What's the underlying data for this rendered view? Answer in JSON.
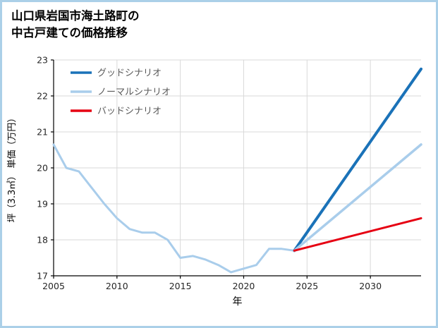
{
  "header": {
    "title_lines": [
      "山口県岩国市海土路町の",
      "中古戸建ての価格推移"
    ]
  },
  "chart_data": {
    "type": "line",
    "title": "山口県岩国市海土路町の中古戸建ての価格推移",
    "xlabel": "年",
    "ylabel": "坪（3.3㎡） 単価（万円）",
    "xlim": [
      2005,
      2034
    ],
    "ylim": [
      17,
      23
    ],
    "xticks": [
      2005,
      2010,
      2015,
      2020,
      2025,
      2030
    ],
    "yticks": [
      17,
      18,
      19,
      20,
      21,
      22,
      23
    ],
    "grid": true,
    "legend_position": "upper-left",
    "colors": {
      "grid": "#d9d9d9",
      "axis": "#000000",
      "tick_label": "#262626",
      "legend_text": "#595959",
      "good": "#1a72b8",
      "normal": "#a9cdeb",
      "bad": "#e60012"
    },
    "legend": [
      {
        "label": "グッドシナリオ",
        "color": "#1a72b8"
      },
      {
        "label": "ノーマルシナリオ",
        "color": "#a9cdeb"
      },
      {
        "label": "バッドシナリオ",
        "color": "#e60012"
      }
    ],
    "series": [
      {
        "name": "",
        "role": "historical",
        "color": "#a9cdeb",
        "width": 3,
        "x": [
          2005,
          2006,
          2007,
          2008,
          2009,
          2010,
          2011,
          2012,
          2013,
          2014,
          2015,
          2016,
          2017,
          2018,
          2019,
          2020,
          2021,
          2022,
          2023,
          2024
        ],
        "y": [
          20.65,
          20.0,
          19.9,
          19.45,
          19.0,
          18.6,
          18.3,
          18.2,
          18.2,
          18.0,
          17.5,
          17.55,
          17.45,
          17.3,
          17.1,
          17.2,
          17.3,
          17.75,
          17.75,
          17.7
        ]
      },
      {
        "name": "グッドシナリオ",
        "role": "good-scenario",
        "color": "#1a72b8",
        "width": 4,
        "x": [
          2024,
          2034
        ],
        "y": [
          17.7,
          22.75
        ]
      },
      {
        "name": "ノーマルシナリオ",
        "role": "normal-scenario",
        "color": "#a9cdeb",
        "width": 3.5,
        "x": [
          2024,
          2034
        ],
        "y": [
          17.7,
          20.65
        ]
      },
      {
        "name": "バッドシナリオ",
        "role": "bad-scenario",
        "color": "#e60012",
        "width": 3,
        "x": [
          2024,
          2034
        ],
        "y": [
          17.7,
          18.6
        ]
      }
    ]
  }
}
